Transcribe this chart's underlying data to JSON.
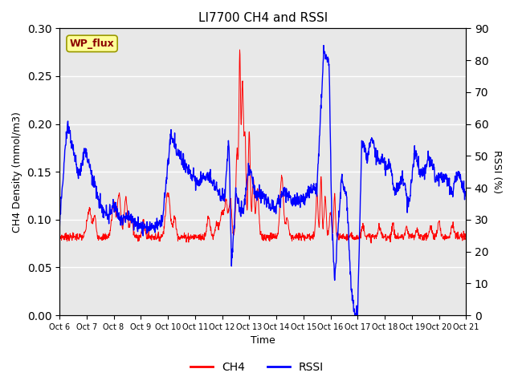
{
  "title": "LI7700 CH4 and RSSI",
  "xlabel": "Time",
  "ylabel_left": "CH4 Density (mmol/m3)",
  "ylabel_right": "RSSI (%)",
  "ylim_left": [
    0.0,
    0.3
  ],
  "ylim_right": [
    0,
    90
  ],
  "yticks_left": [
    0.0,
    0.05,
    0.1,
    0.15,
    0.2,
    0.25,
    0.3
  ],
  "yticks_right": [
    0,
    10,
    20,
    30,
    40,
    50,
    60,
    70,
    80,
    90
  ],
  "x_tick_labels": [
    "Oct 6",
    "Oct 7",
    "Oct 8",
    "Oct 9",
    "Oct 10",
    "Oct 11",
    "Oct 12",
    "Oct 13",
    "Oct 14",
    "Oct 15",
    "Oct 16",
    "Oct 17",
    "Oct 18",
    "Oct 19",
    "Oct 20",
    "Oct 21"
  ],
  "annotation_text": "WP_flux",
  "annotation_color": "#8B0000",
  "annotation_bg": "#FFFF99",
  "bg_color": "#E8E8E8",
  "line_color_ch4": "red",
  "line_color_rssi": "blue",
  "legend_ch4": "CH4",
  "legend_rssi": "RSSI"
}
